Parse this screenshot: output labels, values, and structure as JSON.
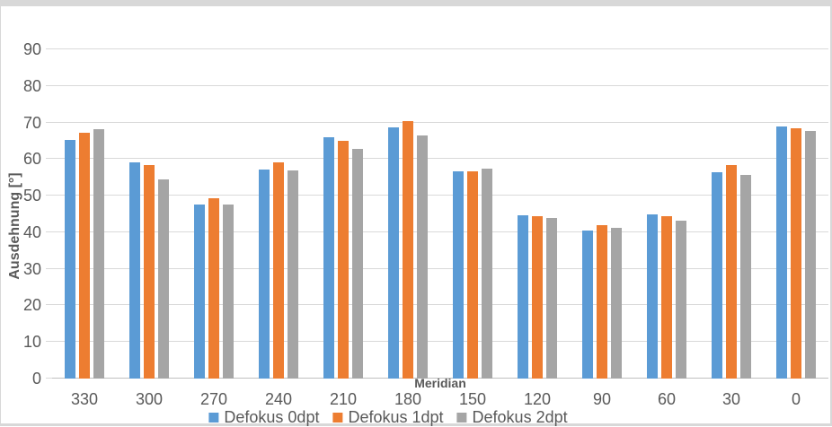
{
  "chart_data": {
    "type": "bar",
    "title": "",
    "xlabel": "Meridian",
    "ylabel": "Ausdehnung [°]",
    "ylim": [
      0,
      90
    ],
    "yticks": [
      90,
      80,
      70,
      60,
      50,
      40,
      30,
      20,
      10,
      0
    ],
    "grid": true,
    "legend_position": "bottom",
    "categories": [
      "330",
      "300",
      "270",
      "240",
      "210",
      "180",
      "150",
      "120",
      "90",
      "60",
      "30",
      "0"
    ],
    "series": [
      {
        "name": "Defokus 0dpt",
        "color": "#5B9BD5",
        "values": [
          65.3,
          59.0,
          47.6,
          57.1,
          66.0,
          68.7,
          56.7,
          44.7,
          40.5,
          45.0,
          56.4,
          68.9
        ]
      },
      {
        "name": "Defokus 1dpt",
        "color": "#ED7D31",
        "values": [
          67.3,
          58.3,
          49.4,
          59.1,
          65.0,
          70.5,
          56.7,
          44.5,
          42.0,
          44.5,
          58.4,
          68.4
        ]
      },
      {
        "name": "Defokus 2dpt",
        "color": "#A5A5A5",
        "values": [
          68.2,
          54.4,
          47.5,
          56.9,
          62.9,
          66.5,
          57.3,
          43.8,
          41.2,
          43.2,
          55.6,
          67.8
        ]
      }
    ],
    "style": {
      "text_color": "#595959",
      "gridline_color": "#D9D9D9",
      "axis_line_color": "#BFBFBF",
      "border_color": "#D8D8D8"
    }
  }
}
